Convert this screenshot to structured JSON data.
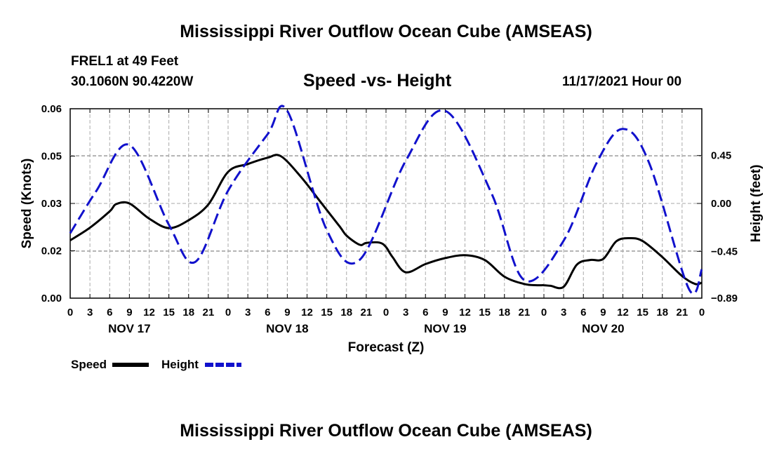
{
  "header": {
    "title": "Mississippi River Outflow Ocean Cube (AMSEAS)",
    "station": "FREL1 at 49 Feet",
    "coords": "30.1060N  90.4220W",
    "plot_title": "Speed -vs- Height",
    "datetime": "11/17/2021 Hour 00"
  },
  "footer": {
    "title": "Mississippi River Outflow Ocean Cube (AMSEAS)"
  },
  "colors": {
    "speed": "#000000",
    "height": "#1111cc",
    "grid": "#aaaaaa"
  },
  "chart_data": {
    "type": "line",
    "title": "Speed -vs- Height",
    "xlabel": "Forecast (Z)",
    "ylabel": "Speed (Knots)",
    "y2label": "Height (feet)",
    "xlim": [
      0,
      96
    ],
    "ylim": [
      0,
      0.06
    ],
    "y2lim": [
      -0.89,
      0.89
    ],
    "x_tick_labels": [
      "0",
      "3",
      "6",
      "9",
      "12",
      "15",
      "18",
      "21",
      "0",
      "3",
      "6",
      "9",
      "12",
      "15",
      "18",
      "21",
      "0",
      "3",
      "6",
      "9",
      "12",
      "15",
      "18",
      "21",
      "0",
      "3",
      "6",
      "9",
      "12",
      "15",
      "18",
      "21",
      "0"
    ],
    "day_labels": [
      {
        "label": "NOV 17",
        "hour": 9
      },
      {
        "label": "NOV 18",
        "hour": 33
      },
      {
        "label": "NOV 19",
        "hour": 57
      },
      {
        "label": "NOV 20",
        "hour": 81
      }
    ],
    "y_ticks": [
      {
        "value": 0.0,
        "label": "0.00"
      },
      {
        "value": 0.015,
        "label": "0.02"
      },
      {
        "value": 0.03,
        "label": "0.03"
      },
      {
        "value": 0.045,
        "label": "0.05"
      },
      {
        "value": 0.06,
        "label": "0.06"
      }
    ],
    "y2_ticks": [
      {
        "value": -0.89,
        "label": "−0.89"
      },
      {
        "value": -0.45,
        "label": "−0.45"
      },
      {
        "value": 0.0,
        "label": "0.00"
      },
      {
        "value": 0.45,
        "label": "0.45"
      }
    ],
    "legend": [
      {
        "name": "Speed",
        "style": "solid"
      },
      {
        "name": "Height",
        "style": "dashed"
      }
    ],
    "series": [
      {
        "name": "Speed",
        "axis": "left",
        "x": [
          0,
          3,
          6,
          7,
          9,
          12,
          15,
          18,
          21,
          24,
          27,
          30,
          32,
          35,
          38,
          41,
          42,
          44,
          45,
          47,
          48,
          49,
          51,
          54,
          57,
          60,
          63,
          66,
          69,
          71,
          72,
          73,
          75,
          77,
          79,
          81,
          83,
          85,
          87,
          90,
          93,
          95,
          96
        ],
        "y": [
          0.0183,
          0.0223,
          0.0275,
          0.0298,
          0.03,
          0.0252,
          0.0222,
          0.0247,
          0.0297,
          0.04,
          0.0425,
          0.0445,
          0.045,
          0.0386,
          0.0306,
          0.0226,
          0.0198,
          0.0169,
          0.0175,
          0.0176,
          0.0162,
          0.013,
          0.0082,
          0.0108,
          0.0127,
          0.0136,
          0.0121,
          0.0068,
          0.0045,
          0.0041,
          0.0041,
          0.0039,
          0.0036,
          0.0106,
          0.0121,
          0.0124,
          0.018,
          0.019,
          0.0181,
          0.013,
          0.007,
          0.0045,
          0.0049
        ]
      },
      {
        "name": "Height",
        "axis": "right",
        "x": [
          0,
          4,
          9,
          15,
          19,
          24,
          30,
          33,
          39,
          44,
          51,
          57,
          64,
          69,
          75,
          80,
          84,
          88,
          94,
          96
        ],
        "y": [
          -0.28,
          0.12,
          0.55,
          -0.2,
          -0.55,
          0.12,
          0.65,
          0.87,
          -0.25,
          -0.53,
          0.4,
          0.87,
          0.1,
          -0.72,
          -0.35,
          0.38,
          0.7,
          0.38,
          -0.8,
          -0.62
        ]
      }
    ]
  }
}
